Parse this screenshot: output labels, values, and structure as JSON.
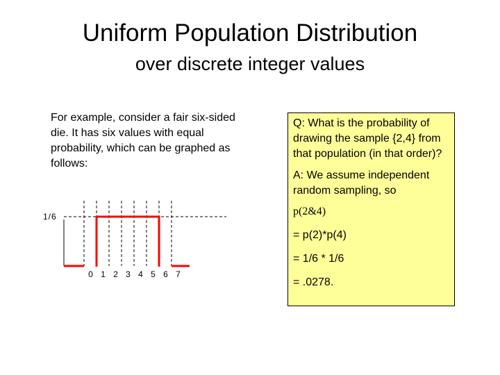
{
  "title": "Uniform Population Distribution",
  "subtitle": "over discrete integer values",
  "intro_text": "For example, consider a fair six-sided die. It has six values with equal probability, which can be graphed as follows:",
  "qa_box": {
    "question": "Q: What is the probability of drawing the sample {2,4} from that population (in that order)?",
    "answer_intro": "A: We assume independent random sampling, so",
    "step1": "p(2&4)",
    "step2": "= p(2)*p(4)",
    "step3": "= 1/6 * 1/6",
    "step4": "= .0278.",
    "background_color": "#ffff99"
  },
  "chart_data": {
    "type": "line",
    "x_ticks": [
      "0",
      "1",
      "2",
      "3",
      "4",
      "5",
      "6",
      "7"
    ],
    "y_tick_label": "1/6",
    "series_color": "#ff0000",
    "segments": [
      {
        "x": [
          -1,
          0
        ],
        "y": [
          0,
          0
        ]
      },
      {
        "x": [
          1,
          6
        ],
        "y": [
          0.1667,
          0.1667
        ]
      },
      {
        "x": [
          7,
          8
        ],
        "y": [
          0,
          0
        ]
      }
    ],
    "verticals": [
      {
        "x": 1,
        "y": [
          0,
          0.1667
        ]
      },
      {
        "x": 6,
        "y": [
          0,
          0.1667
        ]
      }
    ],
    "dashed_gridlines_x": [
      0,
      1,
      2,
      3,
      4,
      5,
      6,
      7
    ],
    "dashed_reference_y": 0.1667
  }
}
